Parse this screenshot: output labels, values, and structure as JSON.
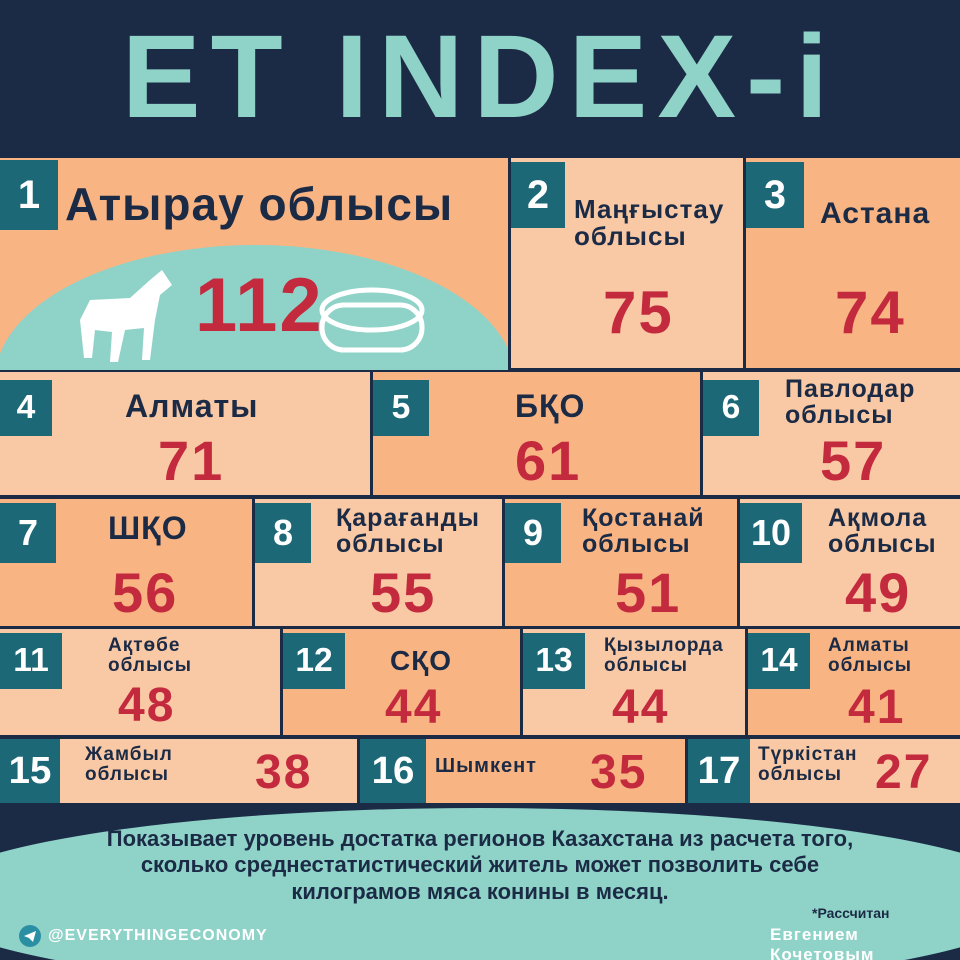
{
  "title": "ET INDEX-і",
  "regions": [
    {
      "rank": 1,
      "name": "Атырау облысы",
      "value": 112
    },
    {
      "rank": 2,
      "name": "Маңғыстау облысы",
      "value": 75
    },
    {
      "rank": 3,
      "name": "Астана",
      "value": 74
    },
    {
      "rank": 4,
      "name": "Алматы",
      "value": 71
    },
    {
      "rank": 5,
      "name": "БҚО",
      "value": 61
    },
    {
      "rank": 6,
      "name": "Павлодар облысы",
      "value": 57
    },
    {
      "rank": 7,
      "name": "ШҚО",
      "value": 56
    },
    {
      "rank": 8,
      "name": "Қарағанды облысы",
      "value": 55
    },
    {
      "rank": 9,
      "name": "Қостанай облысы",
      "value": 51
    },
    {
      "rank": 10,
      "name": "Ақмола облысы",
      "value": 49
    },
    {
      "rank": 11,
      "name": "Ақтөбе облысы",
      "value": 48
    },
    {
      "rank": 12,
      "name": "СҚО",
      "value": 44
    },
    {
      "rank": 13,
      "name": "Қызылорда облысы",
      "value": 44
    },
    {
      "rank": 14,
      "name": "Алматы облысы",
      "value": 41
    },
    {
      "rank": 15,
      "name": "Жамбыл облысы",
      "value": 38
    },
    {
      "rank": 16,
      "name": "Шымкент",
      "value": 35
    },
    {
      "rank": 17,
      "name": "Түркістан облысы",
      "value": 27
    }
  ],
  "description": "Показывает уровень достатка регионов Казахстана из расчета того, сколько среднестатистический житель может позволить себе килограмов мяса конины в месяц.",
  "channel": "@EVERYTHINGECONOMY",
  "credit_note": "*Рассчитан",
  "credit_author": "Евгением Кочетовым"
}
